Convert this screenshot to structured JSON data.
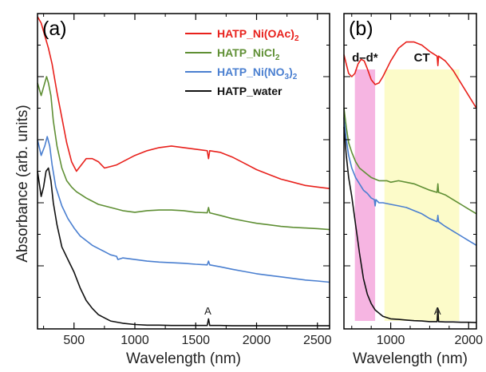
{
  "figure": {
    "ylabel": "Absorbance (arb. units)"
  },
  "chart_data": [
    {
      "type": "line",
      "panel_label": "(a)",
      "xlabel": "Wavelength (nm)",
      "ylabel": "Absorbance (arb. units)",
      "xlim": [
        200,
        2600
      ],
      "ylim": [
        0,
        100
      ],
      "x_ticks": [
        500,
        1000,
        1500,
        2000,
        2500
      ],
      "y_tick_labels": "none",
      "grid": false,
      "legend_position": "top-right",
      "legend": [
        {
          "name": "HATP_Ni(OAc)",
          "sub": "2",
          "color": "#e8211c"
        },
        {
          "name": "HATP_NiCl",
          "sub": "2",
          "color": "#5f8f34"
        },
        {
          "name": "HATP_Ni(NO",
          "sub": "3",
          "tail": ")",
          "sub2": "2",
          "color": "#4a7fd0"
        },
        {
          "name": "HATP_water",
          "sub": "",
          "color": "#111111"
        }
      ],
      "annotations": [
        {
          "text": "A",
          "x": 1600,
          "y": 4.5
        }
      ],
      "series": [
        {
          "name": "HATP_Ni(OAc)2",
          "color": "#e8211c",
          "x": [
            200,
            230,
            260,
            290,
            320,
            360,
            400,
            440,
            480,
            520,
            560,
            600,
            650,
            700,
            750,
            800,
            850,
            900,
            1000,
            1100,
            1200,
            1300,
            1400,
            1500,
            1595,
            1605,
            1615,
            1700,
            1800,
            1900,
            2000,
            2100,
            2200,
            2300,
            2400,
            2500,
            2600
          ],
          "y": [
            99,
            97,
            93,
            89,
            84,
            75,
            67,
            59,
            53,
            50,
            52,
            54,
            54,
            53,
            51,
            51.5,
            52,
            53,
            55,
            56.5,
            57.5,
            58,
            57.5,
            57,
            56.5,
            54,
            56.5,
            56,
            54.5,
            52.5,
            50.5,
            49,
            47.5,
            46.5,
            45.5,
            45,
            44.5
          ]
        },
        {
          "name": "HATP_NiCl2",
          "color": "#5f8f34",
          "x": [
            200,
            230,
            260,
            275,
            290,
            310,
            330,
            360,
            400,
            440,
            480,
            520,
            560,
            600,
            650,
            700,
            800,
            900,
            1000,
            1100,
            1200,
            1300,
            1400,
            1500,
            1595,
            1605,
            1615,
            1700,
            1800,
            1900,
            2000,
            2100,
            2200,
            2300,
            2400,
            2500,
            2600
          ],
          "y": [
            78,
            74,
            78,
            80,
            78,
            74,
            66,
            58,
            51,
            47,
            45,
            43.5,
            42.5,
            41.5,
            40.5,
            39.5,
            38.5,
            37.5,
            37,
            37.5,
            37.7,
            37.7,
            37.5,
            37,
            36.8,
            38.5,
            36.8,
            36,
            35,
            34.2,
            33.5,
            33,
            32.5,
            32.2,
            32,
            31.8,
            31.5
          ]
        },
        {
          "name": "HATP_Ni(NO3)2",
          "color": "#4a7fd0",
          "x": [
            200,
            230,
            260,
            280,
            300,
            320,
            350,
            400,
            450,
            500,
            550,
            600,
            650,
            700,
            750,
            800,
            850,
            860,
            900,
            1000,
            1100,
            1200,
            1300,
            1400,
            1500,
            1595,
            1605,
            1615,
            1700,
            1800,
            1900,
            2000,
            2100,
            2200,
            2300,
            2400,
            2500,
            2600
          ],
          "y": [
            60,
            55,
            58,
            61,
            58,
            52,
            45,
            39,
            35,
            32,
            29.5,
            28,
            26.5,
            25.5,
            24.5,
            23.5,
            23,
            22,
            22.5,
            22,
            21.5,
            21.2,
            21,
            20.8,
            20.5,
            20.3,
            21.5,
            20.3,
            19.7,
            18.9,
            18.2,
            17.5,
            17,
            16.5,
            16,
            15.5,
            15.2,
            14.8
          ]
        },
        {
          "name": "HATP_water",
          "color": "#111111",
          "x": [
            200,
            230,
            250,
            270,
            290,
            310,
            330,
            360,
            400,
            450,
            500,
            550,
            600,
            650,
            700,
            750,
            800,
            900,
            1000,
            1100,
            1200,
            1300,
            1400,
            1500,
            1595,
            1605,
            1615,
            1700,
            1800,
            1900,
            2000,
            2100,
            2200,
            2300,
            2400,
            2500,
            2600
          ],
          "y": [
            50,
            42,
            45,
            50,
            51,
            47,
            40,
            33,
            26,
            22,
            18,
            13,
            9,
            6.5,
            4.5,
            3.5,
            2.5,
            1.8,
            1.4,
            1.2,
            1.2,
            1.1,
            1.1,
            1.1,
            1.1,
            3.2,
            1.1,
            1.1,
            1.0,
            1.0,
            1.0,
            1.0,
            1.0,
            1.0,
            1.0,
            1.0,
            1.0
          ]
        }
      ]
    },
    {
      "type": "line",
      "panel_label": "(b)",
      "xlabel": "Wavelength (nm)",
      "xlim": [
        400,
        2100
      ],
      "ylim": [
        0,
        100
      ],
      "x_ticks": [
        1000,
        2000
      ],
      "y_tick_labels": "none",
      "grid": false,
      "bands": [
        {
          "label": "d–d*",
          "x0": 540,
          "x1": 800,
          "color": "#f5a8dd"
        },
        {
          "label": "CT",
          "x0": 920,
          "x1": 1880,
          "color": "#fbfac0"
        }
      ],
      "annotations": [
        {
          "text": "A",
          "x": 1600,
          "y": 4.5
        }
      ],
      "series": [
        {
          "name": "HATP_Ni(OAc)2",
          "color": "#e8211c",
          "x": [
            400,
            430,
            460,
            500,
            540,
            580,
            620,
            660,
            700,
            750,
            800,
            850,
            900,
            1000,
            1100,
            1200,
            1300,
            1400,
            1500,
            1595,
            1605,
            1615,
            1700,
            1800,
            1900,
            2000,
            2100
          ],
          "y": [
            87,
            84,
            81,
            80,
            81,
            84,
            85.5,
            85,
            82.5,
            79,
            77.5,
            78,
            80,
            85,
            89,
            91,
            91,
            90,
            88,
            86.5,
            83.5,
            86.5,
            85,
            82,
            78,
            74,
            70
          ]
        },
        {
          "name": "HATP_NiCl2",
          "color": "#5f8f34",
          "x": [
            400,
            430,
            460,
            500,
            550,
            600,
            650,
            700,
            750,
            800,
            850,
            900,
            950,
            1000,
            1100,
            1200,
            1300,
            1400,
            1500,
            1595,
            1605,
            1615,
            1700,
            1800,
            1900,
            2000,
            2100
          ],
          "y": [
            70,
            64,
            59,
            56,
            53,
            51,
            50,
            49,
            48,
            47.5,
            47,
            47,
            47,
            46.5,
            47,
            46.5,
            46,
            45,
            44,
            43.3,
            46,
            43.3,
            42.5,
            41,
            39.5,
            38,
            36.5
          ]
        },
        {
          "name": "HATP_Ni(NO3)2",
          "color": "#4a7fd0",
          "x": [
            400,
            430,
            460,
            500,
            550,
            600,
            650,
            700,
            750,
            790,
            800,
            810,
            850,
            900,
            1000,
            1100,
            1200,
            1300,
            1400,
            1500,
            1595,
            1605,
            1615,
            1700,
            1800,
            1900,
            2000,
            2100
          ],
          "y": [
            67,
            60,
            55,
            51,
            48,
            46,
            44,
            43,
            41.5,
            41,
            39,
            41,
            40,
            40,
            39.5,
            39,
            38.5,
            37.5,
            36.5,
            35,
            34,
            36,
            34,
            32.5,
            31,
            29.5,
            28,
            26.5
          ]
        },
        {
          "name": "HATP_water",
          "color": "#111111",
          "x": [
            400,
            430,
            460,
            500,
            550,
            600,
            650,
            700,
            750,
            800,
            850,
            900,
            1000,
            1100,
            1200,
            1300,
            1400,
            1500,
            1595,
            1605,
            1615,
            1700,
            1800,
            1900,
            2000,
            2100
          ],
          "y": [
            64,
            55,
            48,
            42,
            33,
            24,
            16,
            11,
            8,
            6,
            5,
            4,
            3.2,
            3,
            2.8,
            2.6,
            2.5,
            2.3,
            2.3,
            6.5,
            2.3,
            2.2,
            2.2,
            2.1,
            2.1,
            2
          ]
        }
      ]
    }
  ]
}
